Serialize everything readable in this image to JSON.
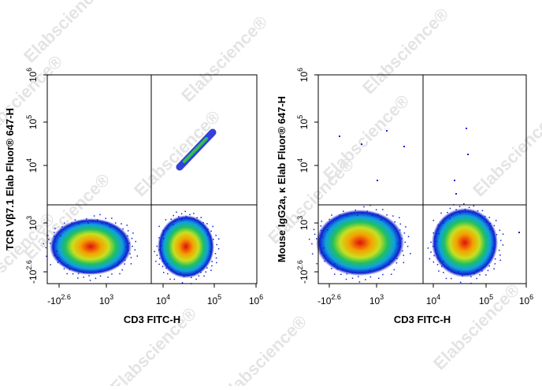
{
  "watermark": "Elabscience®",
  "panels": [
    {
      "y_label": "TCR Vβ7.1 Elab Fluor® 647-H",
      "x_label": "CD3 FITC-H",
      "x_ticks": [
        {
          "base": "-10",
          "exp": "2.6"
        },
        {
          "base": "10",
          "exp": "3"
        },
        {
          "base": "10",
          "exp": "4"
        },
        {
          "base": "10",
          "exp": "5"
        },
        {
          "base": "10",
          "exp": "6"
        }
      ],
      "y_ticks": [
        {
          "base": "-10",
          "exp": "2.6"
        },
        {
          "base": "10",
          "exp": "3"
        },
        {
          "base": "10",
          "exp": "4"
        },
        {
          "base": "10",
          "exp": "5"
        },
        {
          "base": "10",
          "exp": "6"
        }
      ]
    },
    {
      "y_label": "Mouse IgG2a, κ Elab Fluor® 647-H",
      "x_label": "CD3 FITC-H",
      "x_ticks": [
        {
          "base": "-10",
          "exp": "2.6"
        },
        {
          "base": "10",
          "exp": "3"
        },
        {
          "base": "10",
          "exp": "4"
        },
        {
          "base": "10",
          "exp": "5"
        },
        {
          "base": "10",
          "exp": "6"
        }
      ],
      "y_ticks": [
        {
          "base": "-10",
          "exp": "2.6"
        },
        {
          "base": "10",
          "exp": "3"
        },
        {
          "base": "10",
          "exp": "4"
        },
        {
          "base": "10",
          "exp": "5"
        },
        {
          "base": "10",
          "exp": "6"
        }
      ]
    }
  ]
}
